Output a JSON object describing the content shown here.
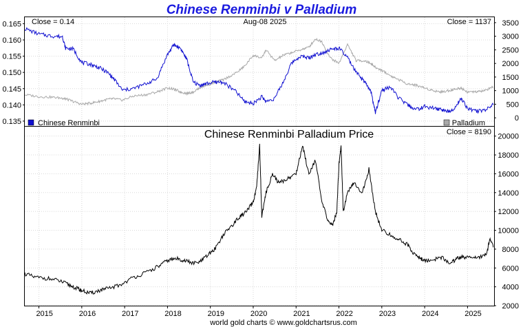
{
  "page": {
    "title": "Chinese Renminbi v Palladium",
    "footer": "world gold charts © www.goldchartsrus.com"
  },
  "colors": {
    "title": "#1a1adf",
    "renminbi": "#1010d0",
    "palladium": "#a8a8a8",
    "ratio": "#000000"
  },
  "chart_data": [
    {
      "type": "line",
      "info": {
        "left": "Close = 0.14",
        "center": "Aug-08  2025",
        "right": "Close = 1137"
      },
      "x": [
        2014.67,
        2015.0,
        2015.3,
        2015.55,
        2015.62,
        2015.8,
        2016.0,
        2016.2,
        2016.4,
        2016.6,
        2016.75,
        2016.95,
        2017.2,
        2017.5,
        2017.75,
        2018.0,
        2018.15,
        2018.3,
        2018.45,
        2018.6,
        2018.75,
        2018.9,
        2019.1,
        2019.3,
        2019.6,
        2019.8,
        2020.0,
        2020.2,
        2020.3,
        2020.5,
        2020.7,
        2020.9,
        2021.1,
        2021.3,
        2021.45,
        2021.6,
        2021.8,
        2022.0,
        2022.2,
        2022.4,
        2022.6,
        2022.75,
        2022.85,
        2023.0,
        2023.2,
        2023.4,
        2023.6,
        2023.8,
        2024.0,
        2024.2,
        2024.4,
        2024.55,
        2024.7,
        2024.85,
        2025.0,
        2025.2,
        2025.4,
        2025.6
      ],
      "series": [
        {
          "name": "Chinese Renminbi",
          "axis": "left",
          "values": [
            0.1635,
            0.1618,
            0.1612,
            0.161,
            0.1575,
            0.1572,
            0.153,
            0.1525,
            0.1515,
            0.15,
            0.148,
            0.1445,
            0.145,
            0.1465,
            0.148,
            0.1555,
            0.1585,
            0.1575,
            0.154,
            0.147,
            0.146,
            0.1465,
            0.147,
            0.147,
            0.144,
            0.141,
            0.1405,
            0.1425,
            0.141,
            0.142,
            0.147,
            0.153,
            0.155,
            0.1545,
            0.1555,
            0.156,
            0.157,
            0.1575,
            0.1545,
            0.15,
            0.147,
            0.144,
            0.1375,
            0.1445,
            0.1455,
            0.142,
            0.14,
            0.1385,
            0.1395,
            0.139,
            0.1385,
            0.138,
            0.139,
            0.142,
            0.139,
            0.138,
            0.1385,
            0.14
          ]
        },
        {
          "name": "Palladium",
          "axis": "right",
          "values": [
            850,
            780,
            760,
            720,
            700,
            600,
            500,
            540,
            600,
            680,
            700,
            650,
            800,
            850,
            950,
            1100,
            1050,
            950,
            900,
            950,
            1100,
            1200,
            1300,
            1400,
            1650,
            1900,
            2300,
            2200,
            2500,
            2100,
            2300,
            2400,
            2500,
            2600,
            2900,
            2800,
            2200,
            2000,
            2700,
            2100,
            2100,
            2000,
            1850,
            1750,
            1550,
            1400,
            1250,
            1200,
            1100,
            1000,
            950,
            1000,
            1050,
            1100,
            950,
            950,
            1000,
            1137
          ]
        }
      ],
      "y_left": {
        "ticks": [
          "0.135",
          "0.140",
          "0.145",
          "0.150",
          "0.155",
          "0.160",
          "0.165"
        ],
        "range": [
          0.1335,
          0.167
        ]
      },
      "y_right": {
        "ticks": [
          "0",
          "500",
          "1000",
          "1500",
          "2000",
          "2500",
          "3000",
          "3500"
        ],
        "range": [
          -300,
          3700
        ]
      },
      "legend": {
        "placement": "bottom",
        "left_label": "Chinese Renminbi",
        "right_label": "Palladium"
      },
      "grid": true
    },
    {
      "type": "line",
      "title": "Chinese Renminbi Palladium Price",
      "info": {
        "right": "Close = 8190"
      },
      "x": [
        2014.67,
        2014.9,
        2015.2,
        2015.5,
        2015.7,
        2015.9,
        2016.0,
        2016.2,
        2016.4,
        2016.6,
        2016.9,
        2017.2,
        2017.5,
        2017.8,
        2018.0,
        2018.2,
        2018.4,
        2018.6,
        2018.75,
        2018.9,
        2019.1,
        2019.3,
        2019.5,
        2019.7,
        2019.85,
        2020.0,
        2020.08,
        2020.15,
        2020.2,
        2020.3,
        2020.45,
        2020.6,
        2020.8,
        2021.0,
        2021.15,
        2021.3,
        2021.45,
        2021.6,
        2021.75,
        2021.85,
        2021.95,
        2022.0,
        2022.05,
        2022.1,
        2022.2,
        2022.35,
        2022.55,
        2022.7,
        2022.85,
        2023.0,
        2023.2,
        2023.4,
        2023.6,
        2023.75,
        2023.9,
        2024.0,
        2024.2,
        2024.4,
        2024.6,
        2024.75,
        2024.9,
        2025.1,
        2025.3,
        2025.45,
        2025.52,
        2025.6
      ],
      "series": [
        {
          "name": "",
          "values": [
            5400,
            5000,
            4900,
            4600,
            4200,
            3800,
            3600,
            3300,
            3600,
            3800,
            4200,
            5000,
            5500,
            6200,
            6800,
            7000,
            6800,
            6500,
            6600,
            7200,
            8000,
            9500,
            10500,
            11500,
            12000,
            13000,
            14500,
            19000,
            11500,
            14000,
            16000,
            15000,
            15500,
            16000,
            19000,
            16000,
            17500,
            13000,
            11000,
            10500,
            12000,
            17000,
            19000,
            12000,
            14000,
            15000,
            14000,
            16500,
            12000,
            10000,
            9500,
            9000,
            8500,
            7500,
            7000,
            6800,
            6900,
            7100,
            6500,
            7000,
            7200,
            7000,
            7200,
            7500,
            9200,
            8190
          ]
        }
      ],
      "y_right": {
        "ticks": [
          "2000",
          "4000",
          "6000",
          "8000",
          "10000",
          "12000",
          "14000",
          "16000",
          "18000",
          "20000"
        ],
        "range": [
          2000,
          21000
        ]
      },
      "x_ticks": [
        "2015",
        "2016",
        "2017",
        "2018",
        "2019",
        "2020",
        "2021",
        "2022",
        "2023",
        "2024",
        "2025"
      ],
      "x_range": [
        2014.67,
        2025.62
      ],
      "grid": true
    }
  ]
}
